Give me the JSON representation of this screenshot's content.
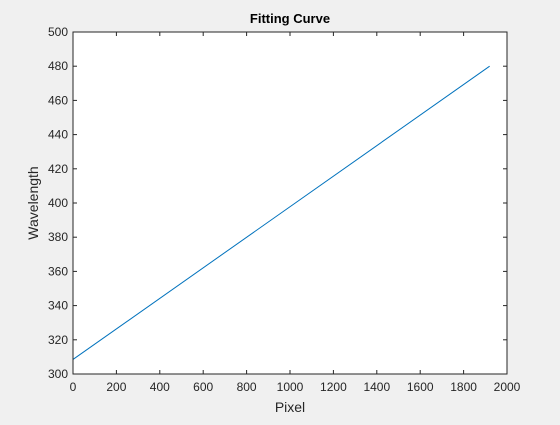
{
  "chart_data": {
    "type": "line",
    "title": "Fitting Curve",
    "xlabel": "Pixel",
    "ylabel": "Wavelength",
    "xlim": [
      0,
      2000
    ],
    "ylim": [
      300,
      500
    ],
    "xticks": [
      0,
      200,
      400,
      600,
      800,
      1000,
      1200,
      1400,
      1600,
      1800,
      2000
    ],
    "yticks": [
      300,
      320,
      340,
      360,
      380,
      400,
      420,
      440,
      460,
      480,
      500
    ],
    "grid": false,
    "series": [
      {
        "x": [
          0,
          1920
        ],
        "y": [
          308.5,
          480
        ],
        "color": "#0072bd"
      }
    ]
  },
  "colors": {
    "axes_background": "#ffffff",
    "figure_background": "#f0f0f0",
    "axis": "#262626",
    "line": "#0072bd"
  }
}
